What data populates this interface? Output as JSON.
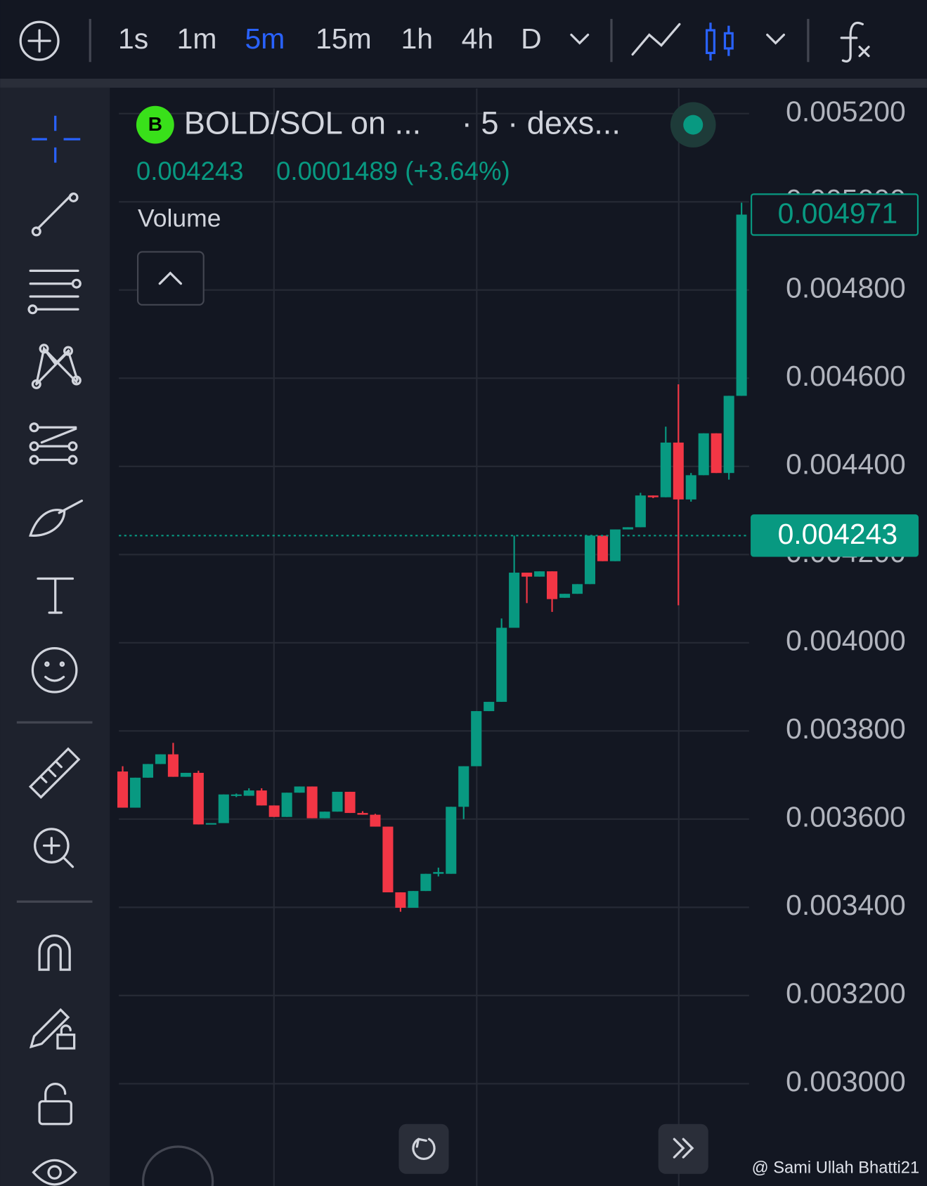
{
  "toolbar": {
    "intervals": [
      "1s",
      "1m",
      "5m",
      "15m",
      "1h",
      "4h",
      "D"
    ],
    "selected": 2
  },
  "chart_data": {
    "type": "candlestick",
    "title": "BOLD/SOL on ...",
    "subtitle": "· 5 · dexs...",
    "price": "0.004243",
    "change": "0.0001489 (+3.64%)",
    "indicator": "Volume",
    "open": [
      0.003708,
      0.003626,
      0.003694,
      0.003725,
      0.003747,
      0.003696,
      0.003705,
      0.003588,
      0.003591,
      0.003653,
      0.003653,
      0.003665,
      0.003631,
      0.003605,
      0.00366,
      0.003674,
      0.003602,
      0.003617,
      0.003662,
      0.003614,
      0.00361,
      0.003583,
      0.003434,
      0.003399,
      0.003437,
      0.003476,
      0.003476,
      0.003628,
      0.00372,
      0.003845,
      0.003866,
      0.004034,
      0.004159,
      0.00415,
      0.004162,
      0.004102,
      0.004111,
      0.004133,
      0.004243,
      0.004185,
      0.004257,
      0.004262,
      0.004334,
      0.00433,
      0.004454,
      0.004325,
      0.00438,
      0.004475,
      0.004385,
      0.00456
    ],
    "high": [
      0.00372,
      0.003694,
      0.003725,
      0.003747,
      0.003773,
      0.003705,
      0.00371,
      0.003591,
      0.003656,
      0.003658,
      0.00367,
      0.00367,
      0.003631,
      0.00366,
      0.003674,
      0.003674,
      0.003617,
      0.003662,
      0.003662,
      0.003618,
      0.003612,
      0.003583,
      0.003434,
      0.003437,
      0.003476,
      0.00349,
      0.003628,
      0.00372,
      0.003845,
      0.003866,
      0.004055,
      0.004243,
      0.004159,
      0.004162,
      0.004162,
      0.004111,
      0.004133,
      0.004243,
      0.004243,
      0.004257,
      0.004262,
      0.00434,
      0.004334,
      0.00449,
      0.004586,
      0.004385,
      0.004475,
      0.004475,
      0.00456,
      0.004998
    ],
    "low": [
      0.003626,
      0.003626,
      0.003694,
      0.003725,
      0.003696,
      0.003696,
      0.003588,
      0.003588,
      0.003591,
      0.00365,
      0.003653,
      0.003631,
      0.003605,
      0.003605,
      0.00366,
      0.003602,
      0.003602,
      0.003617,
      0.003614,
      0.00361,
      0.003583,
      0.003434,
      0.00339,
      0.003399,
      0.003437,
      0.00347,
      0.003476,
      0.0036,
      0.00372,
      0.003845,
      0.003866,
      0.004034,
      0.00409,
      0.00415,
      0.00407,
      0.004102,
      0.004111,
      0.004133,
      0.004185,
      0.004185,
      0.004257,
      0.004262,
      0.004328,
      0.00433,
      0.004085,
      0.00432,
      0.00438,
      0.004385,
      0.00437,
      0.00456
    ],
    "close": [
      0.003626,
      0.003694,
      0.003725,
      0.003747,
      0.003696,
      0.003705,
      0.003588,
      0.003591,
      0.003656,
      0.003656,
      0.003665,
      0.003631,
      0.003605,
      0.00366,
      0.003674,
      0.003602,
      0.003617,
      0.003662,
      0.003614,
      0.00361,
      0.003583,
      0.003434,
      0.003399,
      0.003437,
      0.003476,
      0.00348,
      0.003628,
      0.00372,
      0.003845,
      0.003866,
      0.004034,
      0.004159,
      0.00415,
      0.004162,
      0.004099,
      0.004111,
      0.004133,
      0.004243,
      0.004185,
      0.004257,
      0.004262,
      0.004334,
      0.00433,
      0.004454,
      0.004325,
      0.00438,
      0.004475,
      0.004385,
      0.00456,
      0.004971
    ],
    "up_color": "#089981",
    "down_color": "#f23645",
    "ylim": [
      0.002768,
      0.005257
    ],
    "yticks": [
      {
        "value": 0.0052,
        "label": "0.005200"
      },
      {
        "value": 0.005,
        "label": "0.005000"
      },
      {
        "value": 0.0048,
        "label": "0.004800"
      },
      {
        "value": 0.0046,
        "label": "0.004600"
      },
      {
        "value": 0.0044,
        "label": "0.004400"
      },
      {
        "value": 0.0042,
        "label": "0.004200"
      },
      {
        "value": 0.004,
        "label": "0.004000"
      },
      {
        "value": 0.0038,
        "label": "0.003800"
      },
      {
        "value": 0.0036,
        "label": "0.003600"
      },
      {
        "value": 0.0034,
        "label": "0.003400"
      },
      {
        "value": 0.0032,
        "label": "0.003200"
      },
      {
        "value": 0.003,
        "label": "0.003000"
      }
    ],
    "grid": true,
    "last_price": {
      "value": 0.004971,
      "label": "0.004971"
    },
    "current_price": {
      "value": 0.004243,
      "label": "0.004243"
    }
  },
  "watermark": "@ Sami Ullah Bhatti21"
}
